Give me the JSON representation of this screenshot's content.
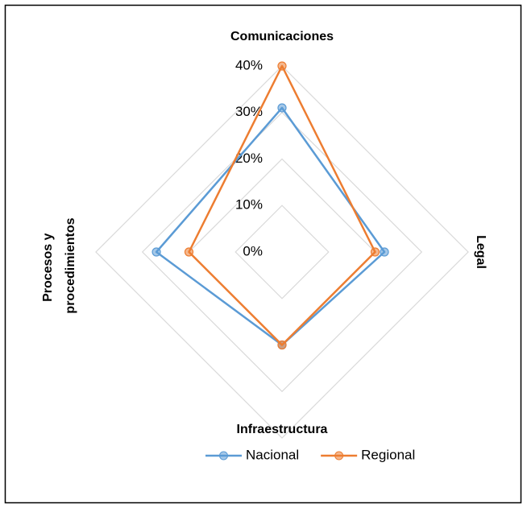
{
  "chart_data": {
    "type": "radar",
    "categories": [
      "Comunicaciones",
      "Legal",
      "Infraestructura",
      "Procesos y procedimientos"
    ],
    "series": [
      {
        "name": "Nacional",
        "color": "#5b9bd5",
        "values": [
          31,
          22,
          20,
          27
        ]
      },
      {
        "name": "Regional",
        "color": "#ed7d31",
        "values": [
          40,
          20,
          20,
          20
        ]
      }
    ],
    "ylim": [
      0,
      40
    ],
    "yticks": [
      {
        "value": 0,
        "label": "0%"
      },
      {
        "value": 10,
        "label": "10%"
      },
      {
        "value": 20,
        "label": "20%"
      },
      {
        "value": 30,
        "label": "30%"
      },
      {
        "value": 40,
        "label": "40%"
      }
    ],
    "grid": true,
    "legend": "bottom"
  }
}
